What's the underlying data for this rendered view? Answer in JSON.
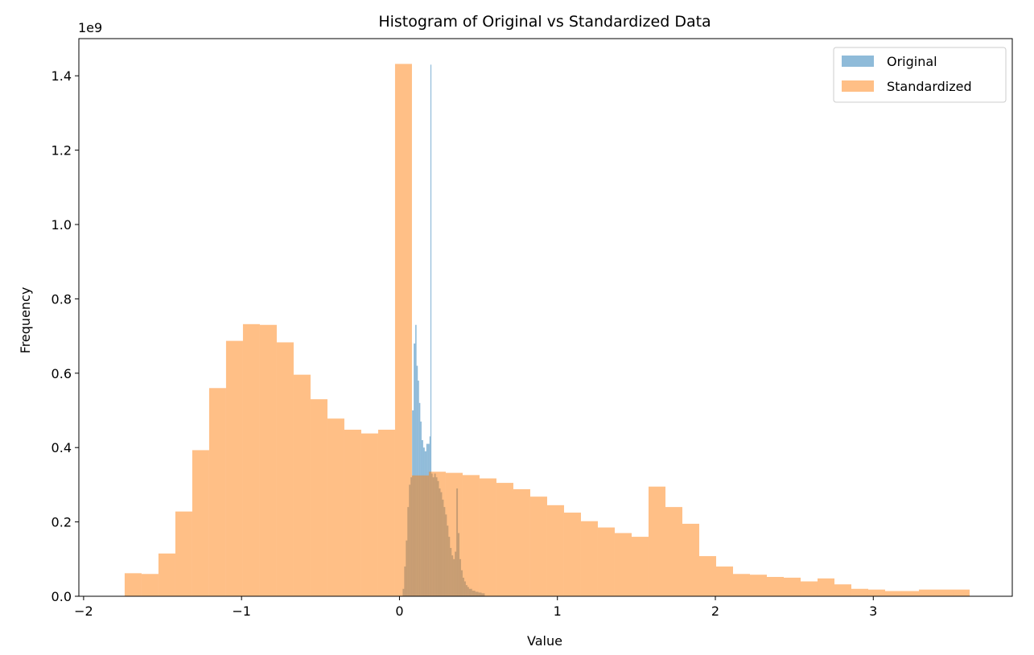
{
  "chart_data": {
    "type": "histogram",
    "title": "Histogram of Original vs Standardized Data",
    "xlabel": "Value",
    "ylabel": "Frequency",
    "y_offset_text": "1e9",
    "xlim": [
      -2.03,
      3.88
    ],
    "ylim": [
      0,
      1.5
    ],
    "x_ticks": [
      -2,
      -1,
      0,
      1,
      2,
      3
    ],
    "x_tick_labels": [
      "−2",
      "−1",
      "0",
      "1",
      "2",
      "3"
    ],
    "y_ticks": [
      0.0,
      0.2,
      0.4,
      0.6,
      0.8,
      1.0,
      1.2,
      1.4
    ],
    "y_tick_labels": [
      "0.0",
      "0.2",
      "0.4",
      "0.6",
      "0.8",
      "1.0",
      "1.2",
      "1.4"
    ],
    "grid": false,
    "legend_position": "top-right",
    "series": [
      {
        "name": "Original",
        "color": "#1f77b4",
        "alpha": 0.5,
        "bins": [
          [
            0.02,
            0.03,
            0.02
          ],
          [
            0.03,
            0.04,
            0.08
          ],
          [
            0.04,
            0.05,
            0.15
          ],
          [
            0.05,
            0.06,
            0.24
          ],
          [
            0.06,
            0.07,
            0.3
          ],
          [
            0.07,
            0.08,
            0.32
          ],
          [
            0.08,
            0.09,
            0.5
          ],
          [
            0.09,
            0.1,
            0.68
          ],
          [
            0.1,
            0.108,
            0.73
          ],
          [
            0.108,
            0.116,
            0.62
          ],
          [
            0.116,
            0.124,
            0.58
          ],
          [
            0.124,
            0.132,
            0.52
          ],
          [
            0.132,
            0.14,
            0.47
          ],
          [
            0.14,
            0.15,
            0.42
          ],
          [
            0.15,
            0.16,
            0.4
          ],
          [
            0.16,
            0.17,
            0.39
          ],
          [
            0.17,
            0.18,
            0.41
          ],
          [
            0.18,
            0.19,
            0.41
          ],
          [
            0.19,
            0.196,
            0.43
          ],
          [
            0.196,
            0.202,
            1.43
          ],
          [
            0.202,
            0.21,
            0.33
          ],
          [
            0.21,
            0.22,
            0.32
          ],
          [
            0.22,
            0.23,
            0.33
          ],
          [
            0.23,
            0.24,
            0.32
          ],
          [
            0.24,
            0.25,
            0.31
          ],
          [
            0.25,
            0.26,
            0.29
          ],
          [
            0.26,
            0.27,
            0.28
          ],
          [
            0.27,
            0.28,
            0.26
          ],
          [
            0.28,
            0.29,
            0.24
          ],
          [
            0.29,
            0.3,
            0.22
          ],
          [
            0.3,
            0.31,
            0.19
          ],
          [
            0.31,
            0.32,
            0.16
          ],
          [
            0.32,
            0.33,
            0.13
          ],
          [
            0.33,
            0.34,
            0.11
          ],
          [
            0.34,
            0.35,
            0.1
          ],
          [
            0.35,
            0.36,
            0.12
          ],
          [
            0.36,
            0.37,
            0.29
          ],
          [
            0.37,
            0.38,
            0.17
          ],
          [
            0.38,
            0.39,
            0.1
          ],
          [
            0.39,
            0.4,
            0.07
          ],
          [
            0.4,
            0.41,
            0.05
          ],
          [
            0.41,
            0.42,
            0.04
          ],
          [
            0.42,
            0.43,
            0.03
          ],
          [
            0.43,
            0.44,
            0.025
          ],
          [
            0.44,
            0.46,
            0.02
          ],
          [
            0.46,
            0.48,
            0.015
          ],
          [
            0.48,
            0.5,
            0.012
          ],
          [
            0.5,
            0.52,
            0.01
          ],
          [
            0.52,
            0.54,
            0.008
          ]
        ]
      },
      {
        "name": "Standardized",
        "color": "#ff7f0e",
        "alpha": 0.5,
        "bins": [
          [
            -1.74,
            -1.633,
            0.062
          ],
          [
            -1.633,
            -1.526,
            0.06
          ],
          [
            -1.526,
            -1.419,
            0.115
          ],
          [
            -1.419,
            -1.312,
            0.228
          ],
          [
            -1.312,
            -1.205,
            0.393
          ],
          [
            -1.205,
            -1.098,
            0.56
          ],
          [
            -1.098,
            -0.991,
            0.687
          ],
          [
            -0.991,
            -0.884,
            0.732
          ],
          [
            -0.884,
            -0.777,
            0.73
          ],
          [
            -0.777,
            -0.67,
            0.683
          ],
          [
            -0.67,
            -0.563,
            0.596
          ],
          [
            -0.563,
            -0.456,
            0.53
          ],
          [
            -0.456,
            -0.349,
            0.478
          ],
          [
            -0.349,
            -0.242,
            0.448
          ],
          [
            -0.242,
            -0.135,
            0.438
          ],
          [
            -0.135,
            -0.028,
            0.448
          ],
          [
            -0.028,
            0.079,
            1.432
          ],
          [
            0.079,
            0.186,
            0.325
          ],
          [
            0.186,
            0.293,
            0.335
          ],
          [
            0.293,
            0.4,
            0.332
          ],
          [
            0.4,
            0.507,
            0.326
          ],
          [
            0.507,
            0.614,
            0.317
          ],
          [
            0.614,
            0.721,
            0.305
          ],
          [
            0.721,
            0.828,
            0.288
          ],
          [
            0.828,
            0.935,
            0.268
          ],
          [
            0.935,
            1.042,
            0.245
          ],
          [
            1.042,
            1.149,
            0.225
          ],
          [
            1.149,
            1.256,
            0.202
          ],
          [
            1.256,
            1.363,
            0.185
          ],
          [
            1.363,
            1.47,
            0.17
          ],
          [
            1.47,
            1.577,
            0.16
          ],
          [
            1.577,
            1.684,
            0.295
          ],
          [
            1.684,
            1.791,
            0.24
          ],
          [
            1.791,
            1.898,
            0.195
          ],
          [
            1.898,
            2.005,
            0.108
          ],
          [
            2.005,
            2.112,
            0.08
          ],
          [
            2.112,
            2.219,
            0.06
          ],
          [
            2.219,
            2.326,
            0.058
          ],
          [
            2.326,
            2.433,
            0.052
          ],
          [
            2.433,
            2.54,
            0.05
          ],
          [
            2.54,
            2.647,
            0.04
          ],
          [
            2.647,
            2.754,
            0.048
          ],
          [
            2.754,
            2.861,
            0.032
          ],
          [
            2.861,
            2.968,
            0.02
          ],
          [
            2.968,
            3.075,
            0.018
          ],
          [
            3.075,
            3.182,
            0.014
          ],
          [
            3.182,
            3.289,
            0.014
          ],
          [
            3.289,
            3.396,
            0.018
          ],
          [
            3.396,
            3.503,
            0.018
          ],
          [
            3.503,
            3.61,
            0.018
          ]
        ]
      }
    ]
  }
}
